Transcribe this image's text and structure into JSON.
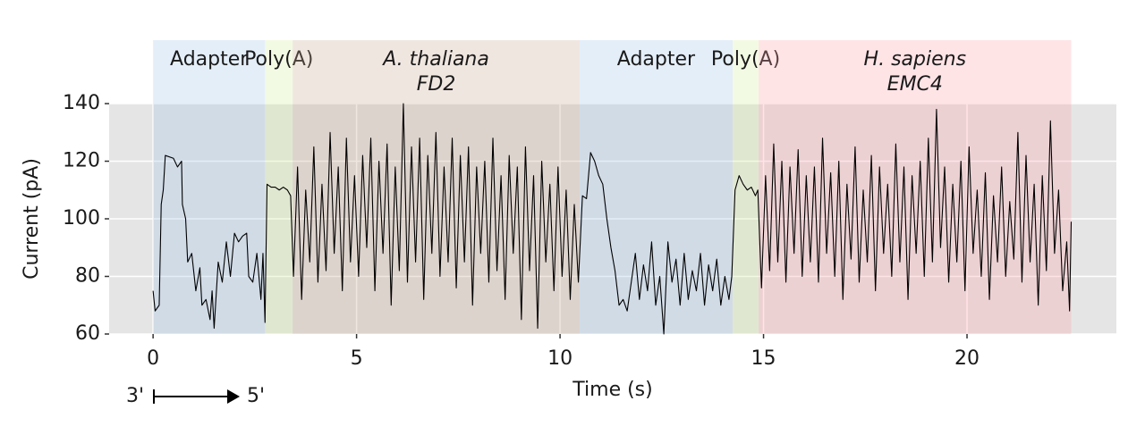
{
  "chart_data": {
    "type": "line",
    "x_label": "Time (s)",
    "y_label": "Current (pA)",
    "xlim": [
      -1.08,
      23.67
    ],
    "ylim": [
      60,
      140
    ],
    "xticks": [
      0,
      5,
      10,
      15,
      20
    ],
    "yticks": [
      60,
      80,
      100,
      120,
      140
    ],
    "grid": true,
    "regions": [
      {
        "label": [
          "Adapter"
        ],
        "italic": false,
        "start": 0,
        "end": 2.75,
        "color": "#9ec3ea"
      },
      {
        "label": [
          "Poly(A)"
        ],
        "italic": false,
        "start": 2.75,
        "end": 3.43,
        "color": "#d3ec9a"
      },
      {
        "label": [
          "A. thaliana",
          "FD2"
        ],
        "italic": true,
        "start": 3.43,
        "end": 10.48,
        "color": "#c9a68f"
      },
      {
        "label": [
          "Adapter"
        ],
        "italic": false,
        "start": 10.48,
        "end": 14.24,
        "color": "#9ec3ea"
      },
      {
        "label": [
          "Poly(A)"
        ],
        "italic": false,
        "start": 14.24,
        "end": 14.88,
        "color": "#d3ec9a"
      },
      {
        "label": [
          "H. sapiens",
          "EMC4"
        ],
        "italic": true,
        "start": 14.88,
        "end": 22.56,
        "color": "#ff9da4"
      }
    ],
    "annotations": {
      "left": "3'",
      "right": "5'"
    },
    "x": [
      0,
      0.05,
      0.15,
      0.2,
      0.25,
      0.3,
      0.5,
      0.6,
      0.7,
      0.72,
      0.8,
      0.85,
      0.95,
      1.05,
      1.15,
      1.2,
      1.3,
      1.4,
      1.45,
      1.5,
      1.6,
      1.7,
      1.8,
      1.9,
      2.0,
      2.1,
      2.2,
      2.3,
      2.35,
      2.45,
      2.55,
      2.65,
      2.7,
      2.75,
      2.8,
      2.9,
      3.0,
      3.1,
      3.2,
      3.3,
      3.38,
      3.45,
      3.55,
      3.65,
      3.75,
      3.85,
      3.95,
      4.05,
      4.15,
      4.25,
      4.35,
      4.45,
      4.55,
      4.65,
      4.75,
      4.85,
      4.95,
      5.05,
      5.15,
      5.25,
      5.35,
      5.45,
      5.55,
      5.65,
      5.75,
      5.85,
      5.95,
      6.05,
      6.15,
      6.25,
      6.35,
      6.45,
      6.55,
      6.65,
      6.75,
      6.85,
      6.95,
      7.05,
      7.15,
      7.25,
      7.35,
      7.45,
      7.55,
      7.65,
      7.75,
      7.85,
      7.95,
      8.05,
      8.15,
      8.25,
      8.35,
      8.45,
      8.55,
      8.65,
      8.75,
      8.85,
      8.95,
      9.05,
      9.15,
      9.25,
      9.35,
      9.45,
      9.55,
      9.65,
      9.75,
      9.85,
      9.95,
      10.05,
      10.15,
      10.25,
      10.35,
      10.45,
      10.55,
      10.65,
      10.75,
      10.85,
      10.95,
      11.05,
      11.15,
      11.25,
      11.35,
      11.45,
      11.55,
      11.65,
      11.75,
      11.85,
      11.95,
      12.05,
      12.15,
      12.25,
      12.35,
      12.45,
      12.55,
      12.65,
      12.75,
      12.85,
      12.95,
      13.05,
      13.15,
      13.25,
      13.35,
      13.45,
      13.55,
      13.65,
      13.75,
      13.85,
      13.95,
      14.05,
      14.15,
      14.22,
      14.3,
      14.4,
      14.5,
      14.6,
      14.7,
      14.8,
      14.86,
      14.95,
      15.05,
      15.15,
      15.25,
      15.35,
      15.45,
      15.55,
      15.65,
      15.75,
      15.85,
      15.95,
      16.05,
      16.15,
      16.25,
      16.35,
      16.45,
      16.55,
      16.65,
      16.75,
      16.85,
      16.95,
      17.05,
      17.15,
      17.25,
      17.35,
      17.45,
      17.55,
      17.65,
      17.75,
      17.85,
      17.95,
      18.05,
      18.15,
      18.25,
      18.35,
      18.45,
      18.55,
      18.65,
      18.75,
      18.85,
      18.95,
      19.05,
      19.15,
      19.25,
      19.35,
      19.45,
      19.55,
      19.65,
      19.75,
      19.85,
      19.95,
      20.05,
      20.15,
      20.25,
      20.35,
      20.45,
      20.55,
      20.65,
      20.75,
      20.85,
      20.95,
      21.05,
      21.15,
      21.25,
      21.35,
      21.45,
      21.55,
      21.65,
      21.75,
      21.85,
      21.95,
      22.05,
      22.15,
      22.25,
      22.35,
      22.45,
      22.52,
      22.56
    ],
    "series": [
      {
        "color": "#000000",
        "values": [
          75,
          68,
          70,
          105,
          110,
          122,
          121,
          118,
          120,
          105,
          100,
          85,
          88,
          75,
          83,
          70,
          72,
          65,
          75,
          62,
          85,
          78,
          92,
          80,
          95,
          92,
          94,
          95,
          80,
          78,
          88,
          72,
          88,
          64,
          112,
          111,
          111,
          110,
          111,
          110,
          108,
          80,
          118,
          72,
          110,
          85,
          125,
          78,
          112,
          82,
          130,
          88,
          118,
          75,
          128,
          85,
          115,
          80,
          122,
          90,
          128,
          75,
          120,
          88,
          126,
          70,
          118,
          82,
          140,
          78,
          125,
          85,
          128,
          72,
          122,
          88,
          130,
          80,
          118,
          85,
          128,
          76,
          122,
          85,
          125,
          70,
          118,
          88,
          120,
          78,
          128,
          82,
          115,
          72,
          122,
          88,
          118,
          65,
          125,
          82,
          115,
          62,
          120,
          85,
          112,
          75,
          118,
          80,
          110,
          72,
          105,
          78,
          108,
          107,
          123,
          120,
          115,
          112,
          100,
          90,
          82,
          70,
          72,
          68,
          78,
          88,
          72,
          84,
          75,
          92,
          70,
          80,
          60,
          92,
          78,
          86,
          70,
          88,
          72,
          82,
          75,
          88,
          70,
          84,
          75,
          86,
          70,
          80,
          72,
          80,
          110,
          115,
          112,
          110,
          111,
          108,
          110,
          76,
          115,
          82,
          126,
          85,
          120,
          78,
          118,
          88,
          124,
          80,
          115,
          85,
          118,
          78,
          128,
          88,
          116,
          80,
          120,
          72,
          112,
          86,
          125,
          78,
          110,
          85,
          122,
          75,
          118,
          88,
          112,
          80,
          126,
          85,
          118,
          72,
          115,
          88,
          120,
          80,
          128,
          85,
          138,
          90,
          118,
          78,
          112,
          85,
          120,
          75,
          125,
          88,
          110,
          80,
          116,
          72,
          108,
          85,
          118,
          80,
          106,
          86,
          130,
          78,
          122,
          85,
          112,
          70,
          115,
          82,
          134,
          88,
          110,
          75,
          92,
          68,
          99
        ]
      }
    ]
  }
}
